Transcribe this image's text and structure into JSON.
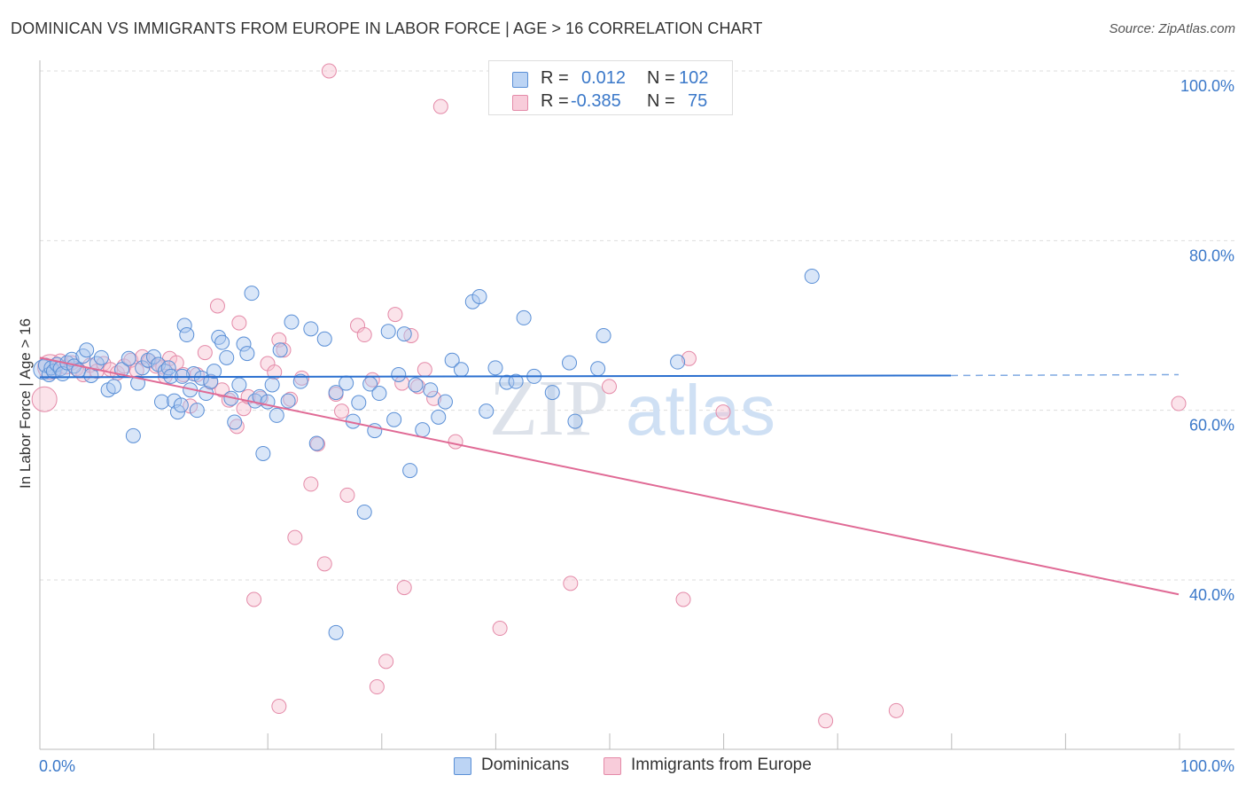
{
  "title": "DOMINICAN VS IMMIGRANTS FROM EUROPE IN LABOR FORCE | AGE > 16 CORRELATION CHART",
  "source": "Source: ZipAtlas.com",
  "watermark": {
    "part1": "ZIP",
    "part2": "atlas"
  },
  "legend": {
    "rows": [
      {
        "r_label": "R =",
        "r_value": "0.012",
        "n_label": "N =",
        "n_value": "102"
      },
      {
        "r_label": "R =",
        "r_value": "-0.385",
        "n_label": "N =",
        "n_value": "75"
      }
    ]
  },
  "bottom_legend": [
    "Dominicans",
    "Immigrants from Europe"
  ],
  "colors": {
    "blue_fill": "#aac8f0",
    "blue_stroke": "#5a8fd6",
    "blue_line": "#2a6fcf",
    "pink_fill": "#f6c0d0",
    "pink_stroke": "#e48aa8",
    "pink_line": "#e06a95",
    "axis_text": "#3a78c9",
    "grid": "#dddddd"
  },
  "chart_data": {
    "type": "scatter",
    "title": "DOMINICAN VS IMMIGRANTS FROM EUROPE IN LABOR FORCE | AGE > 16 CORRELATION CHART",
    "xlabel": "",
    "ylabel": "In Labor Force | Age > 16",
    "xlim": [
      0,
      100
    ],
    "ylim": [
      20,
      102
    ],
    "x_tick_labels": [
      "0.0%",
      "100.0%"
    ],
    "y_ticks": [
      40,
      60,
      80,
      100
    ],
    "y_tick_labels": [
      "40.0%",
      "60.0%",
      "80.0%",
      "100.0%"
    ],
    "series": [
      {
        "name": "Dominicans",
        "R": 0.012,
        "N": 102,
        "trend": {
          "x0": 0,
          "y0": 63.9,
          "x1": 80,
          "y1": 64.1,
          "dashed_to": 100,
          "dashed_y": 64.2
        },
        "points": [
          [
            0.3,
            64.8
          ],
          [
            0.5,
            65.3
          ],
          [
            0.8,
            64.2
          ],
          [
            1.0,
            65.0
          ],
          [
            1.2,
            64.6
          ],
          [
            1.5,
            65.4
          ],
          [
            1.8,
            64.9
          ],
          [
            2.0,
            64.3
          ],
          [
            2.4,
            65.6
          ],
          [
            2.8,
            66.0
          ],
          [
            3.0,
            65.2
          ],
          [
            3.4,
            64.7
          ],
          [
            3.8,
            66.4
          ],
          [
            4.1,
            67.1
          ],
          [
            4.5,
            64.1
          ],
          [
            5.0,
            65.5
          ],
          [
            5.4,
            66.2
          ],
          [
            6.0,
            62.4
          ],
          [
            6.5,
            62.8
          ],
          [
            7.2,
            64.8
          ],
          [
            7.8,
            66.1
          ],
          [
            8.2,
            57.0
          ],
          [
            8.6,
            63.2
          ],
          [
            9.0,
            65.0
          ],
          [
            9.5,
            65.9
          ],
          [
            10.0,
            66.3
          ],
          [
            10.4,
            65.4
          ],
          [
            10.7,
            61.0
          ],
          [
            11.0,
            64.6
          ],
          [
            11.3,
            65.0
          ],
          [
            11.5,
            64.0
          ],
          [
            11.8,
            61.1
          ],
          [
            12.1,
            59.8
          ],
          [
            12.4,
            60.6
          ],
          [
            12.7,
            70.0
          ],
          [
            12.9,
            68.9
          ],
          [
            13.2,
            62.4
          ],
          [
            13.5,
            64.3
          ],
          [
            13.8,
            60.0
          ],
          [
            14.2,
            63.8
          ],
          [
            14.6,
            62.0
          ],
          [
            15.0,
            63.4
          ],
          [
            15.3,
            64.6
          ],
          [
            15.7,
            68.6
          ],
          [
            16.0,
            68.0
          ],
          [
            16.4,
            66.2
          ],
          [
            16.8,
            61.4
          ],
          [
            17.1,
            58.6
          ],
          [
            17.5,
            63.0
          ],
          [
            17.9,
            67.8
          ],
          [
            18.2,
            66.7
          ],
          [
            18.6,
            73.8
          ],
          [
            18.9,
            61.1
          ],
          [
            19.3,
            61.6
          ],
          [
            19.6,
            54.9
          ],
          [
            20.0,
            61.0
          ],
          [
            20.4,
            63.0
          ],
          [
            20.8,
            59.4
          ],
          [
            21.1,
            67.1
          ],
          [
            21.8,
            61.1
          ],
          [
            22.1,
            70.4
          ],
          [
            22.9,
            63.4
          ],
          [
            23.8,
            69.6
          ],
          [
            24.3,
            56.1
          ],
          [
            25.0,
            68.4
          ],
          [
            26.0,
            62.1
          ],
          [
            26.9,
            63.2
          ],
          [
            27.5,
            58.7
          ],
          [
            28.0,
            60.9
          ],
          [
            28.5,
            48.0
          ],
          [
            29.0,
            63.1
          ],
          [
            29.4,
            57.6
          ],
          [
            29.8,
            62.0
          ],
          [
            30.6,
            69.3
          ],
          [
            31.1,
            58.9
          ],
          [
            31.5,
            64.2
          ],
          [
            32.0,
            69.0
          ],
          [
            32.5,
            52.9
          ],
          [
            33.0,
            63.0
          ],
          [
            33.6,
            57.7
          ],
          [
            34.3,
            62.4
          ],
          [
            35.0,
            59.2
          ],
          [
            35.6,
            61.0
          ],
          [
            36.2,
            65.9
          ],
          [
            37.0,
            64.8
          ],
          [
            38.0,
            72.8
          ],
          [
            38.6,
            73.4
          ],
          [
            39.2,
            59.9
          ],
          [
            40.0,
            65.0
          ],
          [
            41.0,
            63.3
          ],
          [
            41.8,
            63.4
          ],
          [
            42.5,
            70.9
          ],
          [
            43.4,
            64.0
          ],
          [
            45.0,
            62.1
          ],
          [
            46.5,
            65.6
          ],
          [
            47.0,
            58.7
          ],
          [
            49.0,
            64.9
          ],
          [
            49.5,
            68.8
          ],
          [
            56.0,
            65.7
          ],
          [
            67.8,
            75.8
          ],
          [
            26.0,
            33.8
          ],
          [
            12.5,
            64.0
          ]
        ]
      },
      {
        "name": "Immigrants from Europe",
        "R": -0.385,
        "N": 75,
        "trend": {
          "x0": 0,
          "y0": 66.2,
          "x1": 100,
          "y1": 38.3
        },
        "points": [
          [
            0.4,
            61.3
          ],
          [
            0.9,
            65.1
          ],
          [
            1.3,
            64.6
          ],
          [
            1.8,
            65.8
          ],
          [
            2.3,
            65.1
          ],
          [
            2.8,
            65.6
          ],
          [
            3.2,
            64.9
          ],
          [
            3.8,
            64.2
          ],
          [
            4.4,
            65.3
          ],
          [
            5.0,
            64.6
          ],
          [
            5.6,
            65.5
          ],
          [
            6.2,
            64.8
          ],
          [
            6.8,
            64.4
          ],
          [
            7.4,
            65.2
          ],
          [
            8.0,
            65.9
          ],
          [
            8.5,
            64.7
          ],
          [
            9.0,
            66.3
          ],
          [
            9.6,
            65.8
          ],
          [
            10.2,
            65.2
          ],
          [
            10.8,
            65.1
          ],
          [
            11.4,
            66.1
          ],
          [
            12.0,
            65.6
          ],
          [
            12.6,
            64.2
          ],
          [
            13.2,
            60.5
          ],
          [
            13.8,
            64.2
          ],
          [
            14.5,
            66.8
          ],
          [
            15.0,
            63.3
          ],
          [
            15.6,
            72.3
          ],
          [
            16.0,
            62.4
          ],
          [
            16.6,
            61.2
          ],
          [
            17.3,
            58.1
          ],
          [
            17.5,
            70.3
          ],
          [
            17.9,
            60.2
          ],
          [
            18.3,
            61.6
          ],
          [
            18.8,
            37.7
          ],
          [
            19.4,
            61.4
          ],
          [
            20.0,
            65.5
          ],
          [
            20.6,
            64.5
          ],
          [
            21.0,
            68.3
          ],
          [
            21.4,
            67.1
          ],
          [
            22.0,
            61.3
          ],
          [
            22.4,
            45.0
          ],
          [
            23.0,
            63.8
          ],
          [
            23.8,
            51.3
          ],
          [
            24.4,
            56.0
          ],
          [
            25.0,
            41.9
          ],
          [
            25.4,
            100.0
          ],
          [
            26.0,
            61.9
          ],
          [
            26.5,
            59.9
          ],
          [
            27.0,
            50.0
          ],
          [
            27.9,
            70.0
          ],
          [
            28.5,
            68.9
          ],
          [
            29.2,
            63.6
          ],
          [
            29.6,
            27.4
          ],
          [
            30.4,
            30.4
          ],
          [
            31.2,
            71.3
          ],
          [
            31.8,
            63.2
          ],
          [
            32.0,
            39.1
          ],
          [
            32.6,
            68.8
          ],
          [
            33.2,
            62.8
          ],
          [
            33.8,
            64.8
          ],
          [
            34.6,
            61.4
          ],
          [
            35.2,
            95.8
          ],
          [
            36.5,
            56.3
          ],
          [
            40.4,
            34.3
          ],
          [
            46.6,
            39.6
          ],
          [
            50.0,
            62.8
          ],
          [
            56.5,
            37.7
          ],
          [
            57.0,
            66.1
          ],
          [
            60.0,
            59.8
          ],
          [
            69.0,
            23.4
          ],
          [
            75.2,
            24.6
          ],
          [
            100.0,
            60.8
          ],
          [
            21.0,
            25.1
          ],
          [
            11.0,
            64.0
          ]
        ]
      }
    ]
  }
}
